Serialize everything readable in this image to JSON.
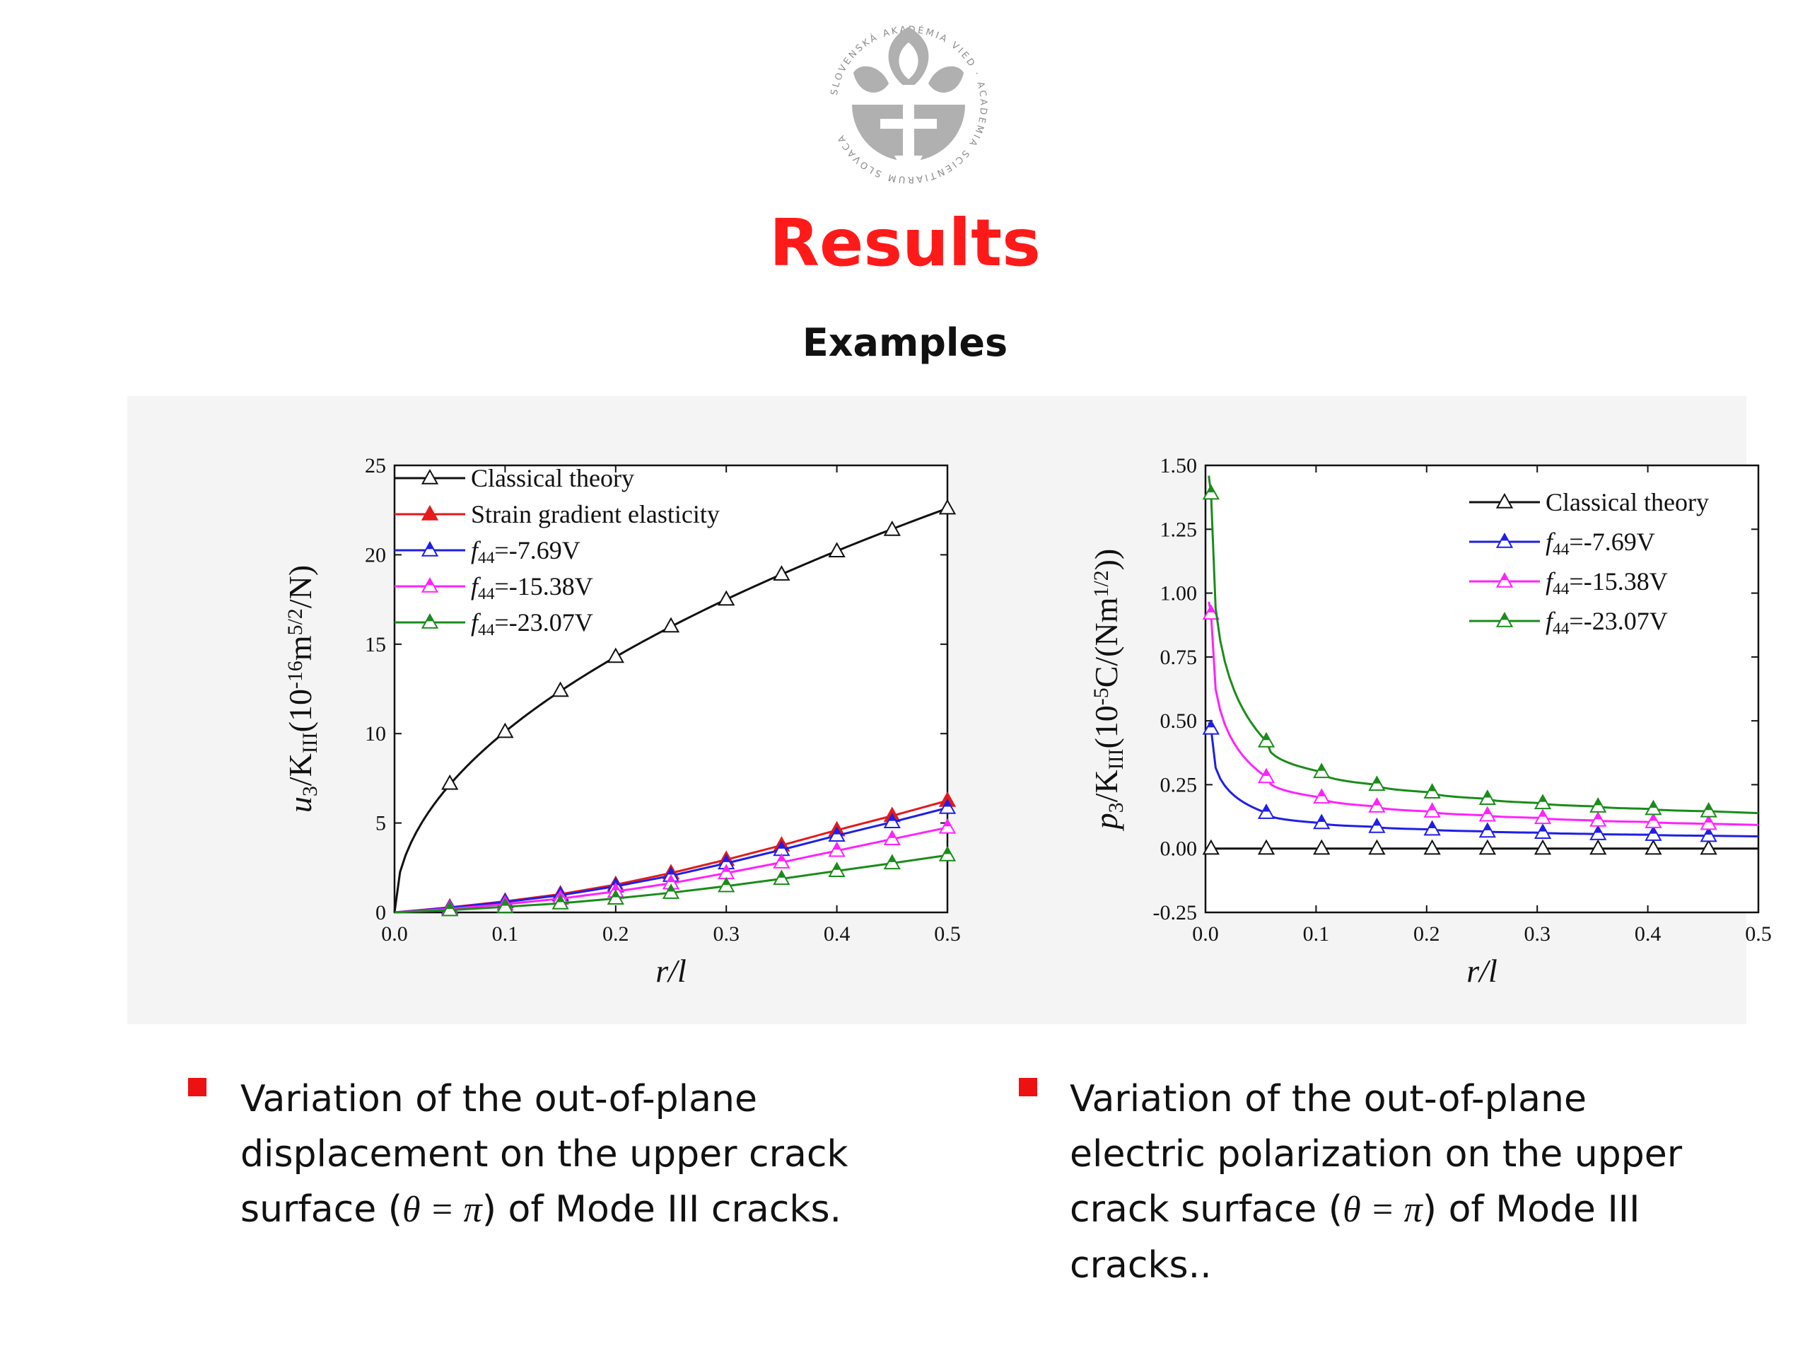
{
  "header": {
    "logo_text": "SLOVENSKÁ AKADÉMIA VIED · ACADEMIA SCIENTIARUM SLOVACA",
    "title": "Results",
    "subtitle": "Examples"
  },
  "colors": {
    "title": "#ff1a1a",
    "bullet": "#ee1111",
    "classical": "#111111",
    "strain_gradient": "#e41a1c",
    "f44_769": "#1f1fe6",
    "f44_1538": "#ff22ff",
    "f44_2307": "#1a8c1a",
    "panel": "#f4f4f4"
  },
  "captions": {
    "left": {
      "line1": "Variation of the out-of-plane",
      "line2": "displacement on the upper crack",
      "line3_pre": "surface (",
      "line3_math": "θ = π",
      "line3_post": ") of Mode III cracks."
    },
    "right": {
      "line1": "Variation of the out-of-plane",
      "line2": "electric polarization on the upper",
      "line3_pre": "crack surface (",
      "line3_math": "θ = π",
      "line3_post": ") of Mode III",
      "line4": "cracks.."
    }
  },
  "chart_data": [
    {
      "type": "line",
      "xlabel": "r/l",
      "ylabel": "u3/KIII(10^-16 m^5/2/N)",
      "xlim": [
        0,
        0.5
      ],
      "ylim": [
        0,
        25
      ],
      "xticks": [
        "0.0",
        "0.1",
        "0.2",
        "0.3",
        "0.4",
        "0.5"
      ],
      "yticks": [
        "0",
        "5",
        "10",
        "15",
        "20",
        "25"
      ],
      "legend_position": "top-left",
      "x": [
        0.05,
        0.1,
        0.15,
        0.2,
        0.25,
        0.3,
        0.35,
        0.4,
        0.45,
        0.5
      ],
      "series": [
        {
          "name": "Classical theory",
          "marker": "open-triangle",
          "color": "#111111",
          "values": [
            7.2,
            10.1,
            12.4,
            14.3,
            16.0,
            17.5,
            18.9,
            20.2,
            21.4,
            22.6
          ]
        },
        {
          "name": "Strain gradient elasticity",
          "marker": "filled-triangle",
          "color": "#e41a1c",
          "values": [
            0.28,
            0.62,
            1.02,
            1.55,
            2.2,
            2.95,
            3.75,
            4.6,
            5.4,
            6.25
          ]
        },
        {
          "name": "f44=-7.69V",
          "marker": "half-triangle",
          "color": "#1f1fe6",
          "values": [
            0.26,
            0.58,
            0.96,
            1.46,
            2.05,
            2.75,
            3.5,
            4.3,
            5.05,
            5.85
          ]
        },
        {
          "name": "f44=-15.38V",
          "marker": "half-triangle",
          "color": "#ff22ff",
          "values": [
            0.2,
            0.46,
            0.77,
            1.17,
            1.63,
            2.2,
            2.8,
            3.45,
            4.1,
            4.75
          ]
        },
        {
          "name": "f44=-23.07V",
          "marker": "half-triangle",
          "color": "#1a8c1a",
          "values": [
            0.13,
            0.31,
            0.51,
            0.78,
            1.1,
            1.47,
            1.88,
            2.32,
            2.75,
            3.2
          ]
        }
      ]
    },
    {
      "type": "line",
      "xlabel": "r/l",
      "ylabel": "p3/KIII(10^-5 C/(Nm^1/2))",
      "xlim": [
        0,
        0.5
      ],
      "ylim": [
        -0.25,
        1.5
      ],
      "xticks": [
        "0.0",
        "0.1",
        "0.2",
        "0.3",
        "0.4",
        "0.5"
      ],
      "yticks": [
        "-0.25",
        "0.00",
        "0.25",
        "0.50",
        "0.75",
        "1.00",
        "1.25",
        "1.50"
      ],
      "legend_position": "top-right",
      "x": [
        0.005,
        0.055,
        0.105,
        0.155,
        0.205,
        0.255,
        0.305,
        0.355,
        0.405,
        0.455
      ],
      "series": [
        {
          "name": "Classical theory",
          "marker": "open-triangle",
          "color": "#111111",
          "values": [
            0.0,
            0.0,
            0.0,
            0.0,
            0.0,
            0.0,
            0.0,
            0.0,
            0.0,
            0.0
          ]
        },
        {
          "name": "f44=-7.69V",
          "marker": "half-triangle",
          "color": "#1f1fe6",
          "values": [
            0.47,
            0.14,
            0.1,
            0.085,
            0.075,
            0.067,
            0.062,
            0.057,
            0.054,
            0.05
          ]
        },
        {
          "name": "f44=-15.38V",
          "marker": "half-triangle",
          "color": "#ff22ff",
          "values": [
            0.92,
            0.28,
            0.2,
            0.165,
            0.145,
            0.13,
            0.12,
            0.11,
            0.104,
            0.097
          ]
        },
        {
          "name": "f44=-23.07V",
          "marker": "half-triangle",
          "color": "#1a8c1a",
          "values": [
            1.39,
            0.42,
            0.3,
            0.25,
            0.22,
            0.195,
            0.178,
            0.165,
            0.155,
            0.146
          ]
        }
      ]
    }
  ]
}
